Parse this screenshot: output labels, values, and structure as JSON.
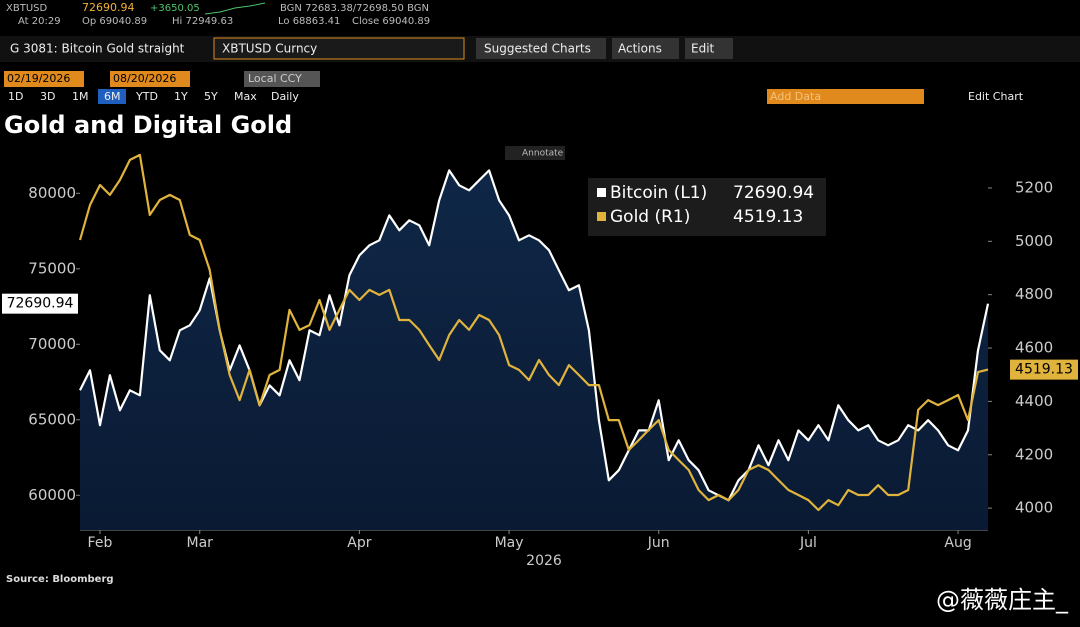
{
  "terminal": {
    "ticker": "XBTUSD",
    "last": "72690.94",
    "change": "+3650.05",
    "quote": "BGN 72683.38/72698.50 BGN",
    "time": "At 20:29",
    "open": "Op 69040.89",
    "high": "Hi 72949.63",
    "low": "Lo 68863.41",
    "close": "Close 69040.89",
    "function": "G 3081: Bitcoin Gold straight",
    "security": "XBTUSD Curncy",
    "menus": [
      "Suggested Charts",
      "Actions",
      "Edit"
    ],
    "start_date": "02/19/2026",
    "end_date": "08/20/2026",
    "currency": "Local CCY",
    "periods": [
      "1D",
      "3D",
      "1M",
      "6M",
      "YTD",
      "1Y",
      "5Y",
      "Max"
    ],
    "frequency": "Daily",
    "add_data": "Add Data",
    "edit_chart": "Edit Chart",
    "annotate": "Annotate",
    "source": "Source: Bloomberg",
    "watermark": "@薇薇庄主_"
  },
  "chart_data": {
    "type": "line",
    "title": "Gold and Digital Gold",
    "x_label": "2026",
    "categories": [
      null,
      null,
      "Feb",
      null,
      null,
      null,
      null,
      null,
      null,
      null,
      null,
      null,
      "Mar",
      null,
      null,
      null,
      null,
      null,
      null,
      null,
      null,
      null,
      null,
      null,
      null,
      null,
      null,
      null,
      "Apr",
      null,
      null,
      null,
      null,
      null,
      null,
      null,
      null,
      null,
      null,
      null,
      null,
      null,
      null,
      "May",
      null,
      null,
      null,
      null,
      null,
      null,
      null,
      null,
      null,
      null,
      null,
      null,
      null,
      null,
      "Jun",
      null,
      null,
      null,
      null,
      null,
      null,
      null,
      null,
      null,
      null,
      null,
      null,
      null,
      null,
      "Jul",
      null,
      null,
      null,
      null,
      null,
      null,
      null,
      null,
      null,
      null,
      null,
      null,
      null,
      null,
      "Aug",
      null,
      null,
      null
    ],
    "series": [
      {
        "name": "Bitcoin (L1)",
        "color": "#ffffff",
        "axis": "y",
        "area_color": "#0f2747",
        "values": [
          66950,
          68280,
          64640,
          67950,
          65630,
          66950,
          66620,
          73250,
          69600,
          68940,
          70930,
          71260,
          72250,
          74370,
          70930,
          68280,
          69930,
          68280,
          65960,
          67280,
          66620,
          68940,
          67620,
          70930,
          70600,
          73250,
          71260,
          74570,
          75890,
          76560,
          76890,
          78540,
          77550,
          78210,
          77880,
          76560,
          79540,
          81520,
          80530,
          80200,
          80860,
          81520,
          79540,
          78540,
          76890,
          77220,
          76890,
          76230,
          74900,
          73580,
          73910,
          70930,
          64970,
          60990,
          61660,
          62980,
          64300,
          64300,
          66290,
          62320,
          63640,
          62320,
          61660,
          60330,
          60000,
          59670,
          60990,
          61660,
          63310,
          61990,
          63640,
          62320,
          64300,
          63640,
          64640,
          63640,
          65960,
          64970,
          64300,
          64640,
          63640,
          63310,
          63640,
          64640,
          64300,
          64970,
          64300,
          63310,
          62980,
          64300,
          69600,
          72690.94
        ]
      },
      {
        "name": "Gold (R1)",
        "color": "#e0b43c",
        "axis": "y2",
        "values": [
          5005,
          5136,
          5211,
          5174,
          5230,
          5305,
          5324,
          5099,
          5155,
          5174,
          5155,
          5024,
          5005,
          4893,
          4668,
          4499,
          4405,
          4518,
          4386,
          4499,
          4518,
          4743,
          4668,
          4686,
          4780,
          4668,
          4743,
          4818,
          4780,
          4818,
          4799,
          4818,
          4705,
          4705,
          4668,
          4611,
          4555,
          4649,
          4705,
          4668,
          4724,
          4705,
          4649,
          4536,
          4518,
          4480,
          4555,
          4499,
          4461,
          4536,
          4499,
          4461,
          4461,
          4330,
          4330,
          4218,
          4255,
          4293,
          4330,
          4218,
          4180,
          4143,
          4068,
          4030,
          4049,
          4030,
          4068,
          4143,
          4161,
          4143,
          4105,
          4068,
          4049,
          4030,
          3993,
          4030,
          4011,
          4068,
          4049,
          4049,
          4086,
          4049,
          4049,
          4068,
          4368,
          4405,
          4386,
          4405,
          4424,
          4330,
          4510,
          4519.13
        ]
      }
    ],
    "ylim": [
      57700,
      83200
    ],
    "yticks": [
      60000,
      65000,
      70000,
      75000,
      80000
    ],
    "y2lim": [
      3918,
      5361
    ],
    "y2ticks": [
      4000,
      4200,
      4400,
      4600,
      4800,
      5000,
      5200
    ]
  }
}
